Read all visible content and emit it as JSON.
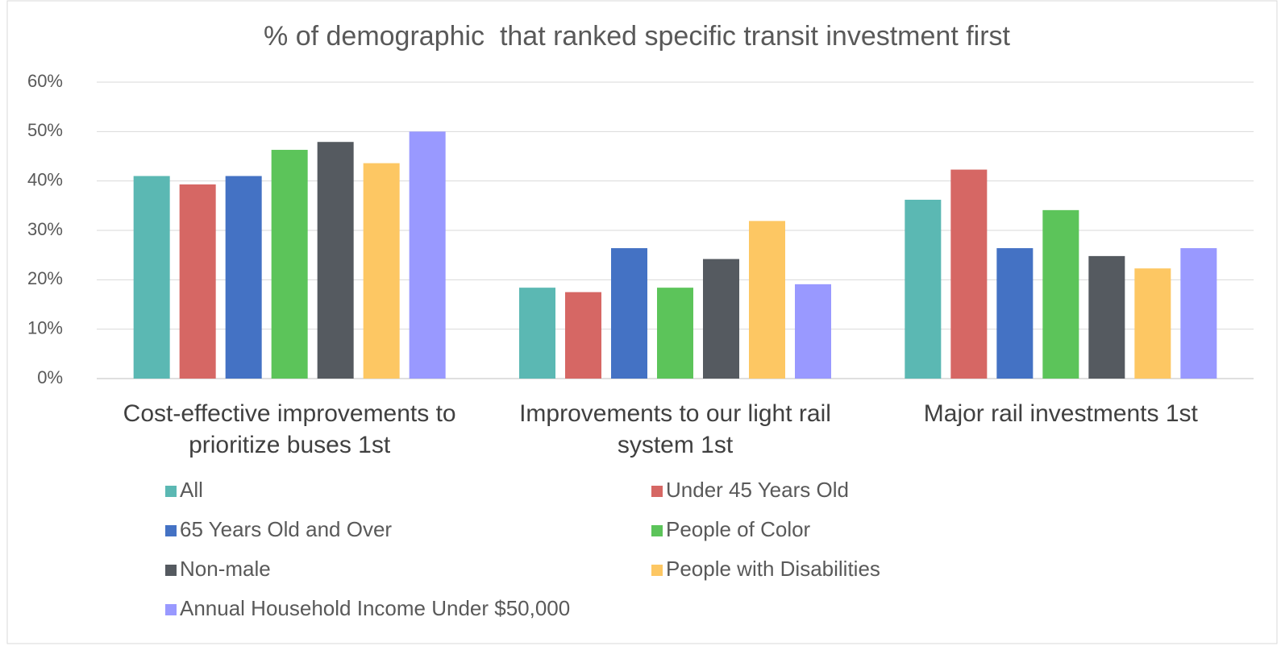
{
  "chart_data": {
    "type": "bar",
    "title": "% of demographic  that ranked specific transit investment first",
    "categories": [
      "Cost-effective improvements to prioritize buses 1st",
      "Improvements to our light rail system 1st",
      "Major rail investments 1st"
    ],
    "series": [
      {
        "name": "All",
        "color": "#5bb8b3",
        "values": [
          41,
          18.4,
          36.2
        ]
      },
      {
        "name": "Under 45 Years Old",
        "color": "#d66764",
        "values": [
          39.3,
          17.5,
          42.3
        ]
      },
      {
        "name": "65 Years Old and Over",
        "color": "#4472c4",
        "values": [
          41,
          26.4,
          26.4
        ]
      },
      {
        "name": "People of Color",
        "color": "#5cc45a",
        "values": [
          46.3,
          18.4,
          34.1
        ]
      },
      {
        "name": "Non-male",
        "color": "#555a60",
        "values": [
          47.9,
          24.2,
          24.8
        ]
      },
      {
        "name": "People with Disabilities",
        "color": "#fdc763",
        "values": [
          43.6,
          31.9,
          22.3
        ]
      },
      {
        "name": "Annual Household Income Under $50,000",
        "color": "#9999ff",
        "values": [
          50,
          19.1,
          26.4
        ]
      }
    ],
    "ylim": [
      0,
      60
    ],
    "yticks": [
      {
        "value": 0,
        "label": "0%"
      },
      {
        "value": 10,
        "label": "10%"
      },
      {
        "value": 20,
        "label": "20%"
      },
      {
        "value": 30,
        "label": "30%"
      },
      {
        "value": 40,
        "label": "40%"
      },
      {
        "value": 50,
        "label": "50%"
      },
      {
        "value": 60,
        "label": "60%"
      }
    ],
    "grid": true
  }
}
